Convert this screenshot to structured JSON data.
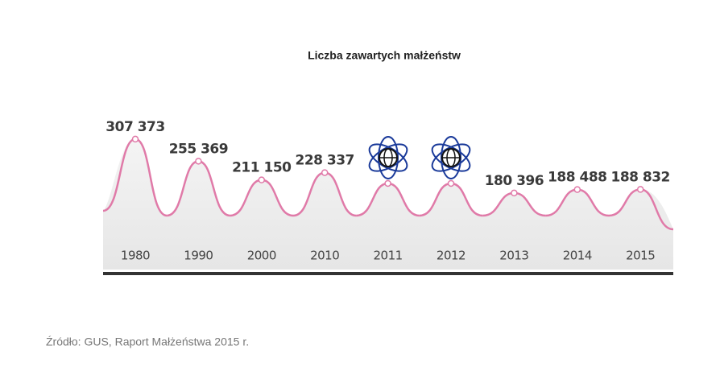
{
  "chart_data": {
    "type": "line",
    "title": "Liczba zawartych małżeństw",
    "categories": [
      "1980",
      "1990",
      "2000",
      "2010",
      "2011",
      "2012",
      "2013",
      "2014",
      "2015"
    ],
    "values": [
      307373,
      255369,
      211150,
      228337,
      203000,
      203000,
      180396,
      188488,
      188832
    ],
    "value_labels": [
      "307 373",
      "255 369",
      "211 150",
      "228 337",
      null,
      null,
      "180 396",
      "188 488",
      "188 832"
    ],
    "color": "#e07aa8",
    "ylim": [
      0,
      330000
    ],
    "source": "Źródło: GUS, Raport Małżeństwa 2015 r."
  }
}
